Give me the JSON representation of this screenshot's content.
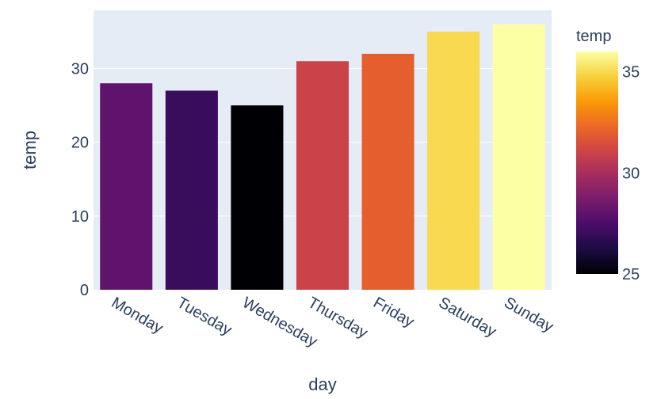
{
  "chart_data": {
    "type": "bar",
    "categories": [
      "Monday",
      "Tuesday",
      "Wednesday",
      "Thursday",
      "Friday",
      "Saturday",
      "Sunday"
    ],
    "values": [
      28,
      27,
      25,
      31,
      32,
      35,
      36
    ],
    "xlabel": "day",
    "ylabel": "temp",
    "ylim": [
      0,
      37.9
    ],
    "yticks": [
      0,
      10,
      20,
      30
    ],
    "grid": true,
    "colorscale": "inferno",
    "colorbar": {
      "title": "temp",
      "range": [
        25,
        36
      ],
      "ticks": [
        25,
        30,
        35
      ],
      "stops": [
        "#000004",
        "#1b0c41",
        "#4a0c6b",
        "#781c6d",
        "#a52c60",
        "#cf4446",
        "#ed6925",
        "#fb9b06",
        "#f7d13d",
        "#fcffa4"
      ]
    },
    "colors": {
      "plot_bg": "#e5ecf6",
      "grid": "#ffffff",
      "text": "#2a3f5f"
    },
    "legend_position": "right"
  }
}
